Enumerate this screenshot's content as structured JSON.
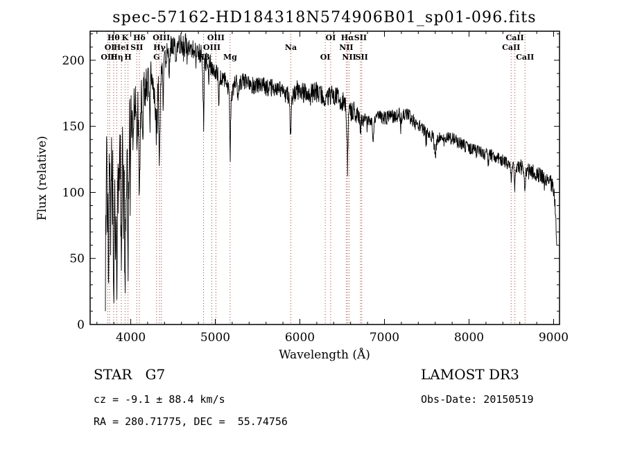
{
  "chart_data": {
    "type": "line",
    "title": "spec-57162-HD184318N574906B01_sp01-096.fits",
    "xlabel": "Wavelength (Å)",
    "ylabel": "Flux (relative)",
    "xlim": [
      3520,
      9070
    ],
    "ylim": [
      0,
      222
    ],
    "xticks": [
      4000,
      5000,
      6000,
      7000,
      8000,
      9000
    ],
    "yticks": [
      0,
      50,
      100,
      150,
      200
    ],
    "x_minor_step": 200,
    "y_minor_step": 10,
    "grid": false,
    "legend": "none",
    "line_color": "#000000",
    "marker_line_color": "#a03c28",
    "spectral_lines": [
      {
        "wl": 3727,
        "label": "OII",
        "row": 2
      },
      {
        "wl": 3750,
        "label": "OI",
        "row": 1
      },
      {
        "wl": 3798,
        "label": "Hθ",
        "row": 0
      },
      {
        "wl": 3835,
        "label": "Hη",
        "row": 2
      },
      {
        "wl": 3889,
        "label": "HeI",
        "row": 1
      },
      {
        "wl": 3933,
        "label": "K",
        "row": 0
      },
      {
        "wl": 3968,
        "label": "H",
        "row": 2
      },
      {
        "wl": 4072,
        "label": "SII",
        "row": 1
      },
      {
        "wl": 4102,
        "label": "Hδ",
        "row": 0
      },
      {
        "wl": 4305,
        "label": "G",
        "row": 2
      },
      {
        "wl": 4340,
        "label": "Hγ",
        "row": 1
      },
      {
        "wl": 4363,
        "label": "OIII",
        "row": 0
      },
      {
        "wl": 4861,
        "label": "Hβ",
        "row": 2
      },
      {
        "wl": 4959,
        "label": "OIII",
        "row": 1
      },
      {
        "wl": 5007,
        "label": "OIII",
        "row": 0
      },
      {
        "wl": 5175,
        "label": "Mg",
        "row": 2
      },
      {
        "wl": 5893,
        "label": "Na",
        "row": 1
      },
      {
        "wl": 6300,
        "label": "OI",
        "row": 2
      },
      {
        "wl": 6364,
        "label": "OI",
        "row": 0
      },
      {
        "wl": 6548,
        "label": "NII",
        "row": 1
      },
      {
        "wl": 6563,
        "label": "Hα",
        "row": 0
      },
      {
        "wl": 6583,
        "label": "NII",
        "row": 2
      },
      {
        "wl": 6716,
        "label": "SII",
        "row": 0
      },
      {
        "wl": 6731,
        "label": "SII",
        "row": 2
      },
      {
        "wl": 8498,
        "label": "CaII",
        "row": 1
      },
      {
        "wl": 8542,
        "label": "CaII",
        "row": 0
      },
      {
        "wl": 8662,
        "label": "CaII",
        "row": 2
      }
    ],
    "spectrum": {
      "seed": 20150519,
      "step": 3.5,
      "range": [
        3700,
        9040
      ],
      "spike_prob": 0.025,
      "spike_scale": 1.8,
      "continuum_anchors": [
        [
          3700,
          4
        ],
        [
          3703,
          55
        ],
        [
          3708,
          95
        ],
        [
          3715,
          112
        ],
        [
          3725,
          118
        ],
        [
          3740,
          108
        ],
        [
          3755,
          115
        ],
        [
          3770,
          120
        ],
        [
          3785,
          112
        ],
        [
          3800,
          118
        ],
        [
          3815,
          122
        ],
        [
          3830,
          118
        ],
        [
          3845,
          124
        ],
        [
          3860,
          120
        ],
        [
          3880,
          126
        ],
        [
          3900,
          130
        ],
        [
          3920,
          128
        ],
        [
          3940,
          126
        ],
        [
          3960,
          130
        ],
        [
          3980,
          140
        ],
        [
          4000,
          150
        ],
        [
          4020,
          158
        ],
        [
          4040,
          163
        ],
        [
          4060,
          166
        ],
        [
          4080,
          162
        ],
        [
          4100,
          165
        ],
        [
          4120,
          170
        ],
        [
          4140,
          174
        ],
        [
          4160,
          177
        ],
        [
          4180,
          180
        ],
        [
          4200,
          182
        ],
        [
          4220,
          184
        ],
        [
          4240,
          186
        ],
        [
          4260,
          182
        ],
        [
          4280,
          176
        ],
        [
          4300,
          173
        ],
        [
          4320,
          178
        ],
        [
          4340,
          183
        ],
        [
          4360,
          190
        ],
        [
          4380,
          195
        ],
        [
          4400,
          200
        ],
        [
          4430,
          205
        ],
        [
          4460,
          209
        ],
        [
          4500,
          212
        ],
        [
          4540,
          210
        ],
        [
          4580,
          213
        ],
        [
          4620,
          212
        ],
        [
          4660,
          211
        ],
        [
          4700,
          212
        ],
        [
          4740,
          209
        ],
        [
          4780,
          207
        ],
        [
          4820,
          205
        ],
        [
          4860,
          200
        ],
        [
          4900,
          201
        ],
        [
          4940,
          197
        ],
        [
          4980,
          193
        ],
        [
          5020,
          190
        ],
        [
          5060,
          188
        ],
        [
          5100,
          187
        ],
        [
          5140,
          183
        ],
        [
          5180,
          176
        ],
        [
          5220,
          181
        ],
        [
          5260,
          183
        ],
        [
          5300,
          184
        ],
        [
          5350,
          183
        ],
        [
          5400,
          182
        ],
        [
          5450,
          181
        ],
        [
          5500,
          180
        ],
        [
          5550,
          181
        ],
        [
          5600,
          180
        ],
        [
          5660,
          179
        ],
        [
          5720,
          178
        ],
        [
          5780,
          177
        ],
        [
          5840,
          174
        ],
        [
          5900,
          172
        ],
        [
          5950,
          177
        ],
        [
          6000,
          177
        ],
        [
          6060,
          176
        ],
        [
          6120,
          175
        ],
        [
          6180,
          176
        ],
        [
          6240,
          175
        ],
        [
          6300,
          172
        ],
        [
          6360,
          173
        ],
        [
          6420,
          173
        ],
        [
          6480,
          171
        ],
        [
          6540,
          166
        ],
        [
          6580,
          160
        ],
        [
          6620,
          162
        ],
        [
          6660,
          159
        ],
        [
          6700,
          157
        ],
        [
          6740,
          155
        ],
        [
          6780,
          155
        ],
        [
          6820,
          156
        ],
        [
          6860,
          156
        ],
        [
          6900,
          158
        ],
        [
          6950,
          157
        ],
        [
          7000,
          156
        ],
        [
          7060,
          157
        ],
        [
          7120,
          158
        ],
        [
          7180,
          159
        ],
        [
          7240,
          160
        ],
        [
          7300,
          157
        ],
        [
          7360,
          153
        ],
        [
          7420,
          150
        ],
        [
          7480,
          146
        ],
        [
          7540,
          143
        ],
        [
          7600,
          140
        ],
        [
          7660,
          141
        ],
        [
          7720,
          142
        ],
        [
          7780,
          141
        ],
        [
          7840,
          139
        ],
        [
          7900,
          137
        ],
        [
          7960,
          135
        ],
        [
          8020,
          133
        ],
        [
          8080,
          131
        ],
        [
          8140,
          130
        ],
        [
          8200,
          129
        ],
        [
          8260,
          128
        ],
        [
          8320,
          127
        ],
        [
          8380,
          125
        ],
        [
          8440,
          123
        ],
        [
          8500,
          121
        ],
        [
          8560,
          120
        ],
        [
          8620,
          119
        ],
        [
          8680,
          117
        ],
        [
          8740,
          116
        ],
        [
          8800,
          114
        ],
        [
          8860,
          112
        ],
        [
          8920,
          110
        ],
        [
          8970,
          107
        ],
        [
          9000,
          102
        ],
        [
          9015,
          92
        ],
        [
          9028,
          75
        ],
        [
          9040,
          55
        ]
      ],
      "absorption_dips": [
        [
          3735,
          5,
          60
        ],
        [
          3762,
          5,
          55
        ],
        [
          3798,
          5,
          75
        ],
        [
          3820,
          4,
          45
        ],
        [
          3835,
          5,
          80
        ],
        [
          3860,
          4,
          40
        ],
        [
          3889,
          5,
          78
        ],
        [
          3912,
          4,
          35
        ],
        [
          3933,
          6,
          88
        ],
        [
          3968,
          6,
          82
        ],
        [
          4026,
          4,
          25
        ],
        [
          4072,
          4,
          40
        ],
        [
          4102,
          6,
          68
        ],
        [
          4144,
          4,
          25
        ],
        [
          4226,
          4,
          32
        ],
        [
          4305,
          8,
          28
        ],
        [
          4340,
          6,
          60
        ],
        [
          4383,
          4,
          28
        ],
        [
          4455,
          4,
          18
        ],
        [
          4531,
          4,
          15
        ],
        [
          4668,
          4,
          12
        ],
        [
          4861,
          6,
          45
        ],
        [
          4922,
          4,
          12
        ],
        [
          5041,
          4,
          20
        ],
        [
          5175,
          4,
          40
        ],
        [
          5180,
          12,
          12
        ],
        [
          5270,
          5,
          14
        ],
        [
          5890,
          8,
          25
        ],
        [
          6122,
          4,
          8
        ],
        [
          6300,
          4,
          8
        ],
        [
          6495,
          4,
          10
        ],
        [
          6563,
          7,
          35
        ],
        [
          6717,
          4,
          10
        ],
        [
          6867,
          7,
          14
        ],
        [
          7190,
          5,
          8
        ],
        [
          7600,
          9,
          12
        ],
        [
          8227,
          4,
          8
        ],
        [
          8498,
          5,
          12
        ],
        [
          8542,
          6,
          16
        ],
        [
          8662,
          6,
          15
        ]
      ],
      "noise_segments": [
        [
          3700,
          4005,
          33
        ],
        [
          4005,
          4350,
          16
        ],
        [
          4350,
          4950,
          9
        ],
        [
          4950,
          5900,
          7
        ],
        [
          5900,
          6700,
          8
        ],
        [
          6700,
          7600,
          5.5
        ],
        [
          7600,
          8600,
          5
        ],
        [
          8600,
          9045,
          6
        ]
      ]
    }
  },
  "annotations": {
    "left": {
      "line1": "STAR   G7",
      "line2": "cz = -9.1 ± 88.4 km/s",
      "line3": "RA = 280.71775, DEC =  55.74756"
    },
    "right": {
      "line1": "LAMOST DR3",
      "line2": "Obs-Date: 20150519"
    }
  }
}
